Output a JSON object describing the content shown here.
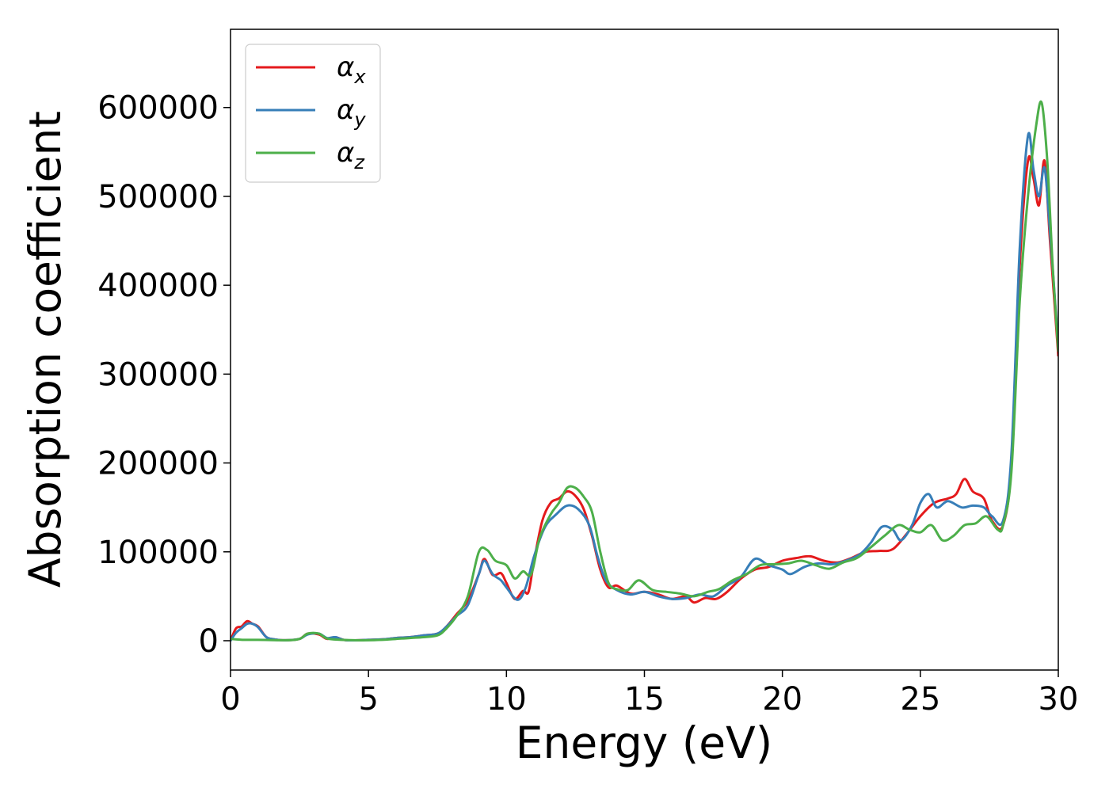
{
  "chart_data": {
    "type": "line",
    "xlabel": "Energy (eV)",
    "ylabel": "Absorption coefficient",
    "xlim": [
      0,
      30
    ],
    "ylim": [
      -33000,
      688000
    ],
    "xticks": [
      0,
      5,
      10,
      15,
      20,
      25,
      30
    ],
    "yticks": [
      0,
      100000,
      200000,
      300000,
      400000,
      500000,
      600000
    ],
    "grid": false,
    "legend_position": "upper-left",
    "series": [
      {
        "name": "α",
        "subscript": "x",
        "color": "#e41a1c",
        "points": [
          [
            0,
            0
          ],
          [
            0.2,
            14000
          ],
          [
            0.4,
            16000
          ],
          [
            0.6,
            22000
          ],
          [
            0.8,
            19000
          ],
          [
            1.0,
            16000
          ],
          [
            1.3,
            4000
          ],
          [
            1.6,
            1500
          ],
          [
            2.0,
            500
          ],
          [
            2.5,
            2000
          ],
          [
            2.8,
            8000
          ],
          [
            3.2,
            7000
          ],
          [
            3.5,
            2000
          ],
          [
            3.8,
            4000
          ],
          [
            4.2,
            500
          ],
          [
            5.0,
            1000
          ],
          [
            5.5,
            1500
          ],
          [
            6.0,
            3000
          ],
          [
            6.5,
            4000
          ],
          [
            7.0,
            6000
          ],
          [
            7.5,
            8000
          ],
          [
            7.8,
            15000
          ],
          [
            8.2,
            30000
          ],
          [
            8.6,
            45000
          ],
          [
            9.0,
            75000
          ],
          [
            9.2,
            92000
          ],
          [
            9.5,
            74000
          ],
          [
            9.8,
            76000
          ],
          [
            10.0,
            65000
          ],
          [
            10.3,
            47000
          ],
          [
            10.6,
            56000
          ],
          [
            10.8,
            55000
          ],
          [
            11.0,
            90000
          ],
          [
            11.3,
            135000
          ],
          [
            11.6,
            155000
          ],
          [
            11.9,
            160000
          ],
          [
            12.2,
            168000
          ],
          [
            12.5,
            163000
          ],
          [
            12.8,
            148000
          ],
          [
            13.1,
            118000
          ],
          [
            13.4,
            80000
          ],
          [
            13.7,
            60000
          ],
          [
            14.0,
            62000
          ],
          [
            14.5,
            53000
          ],
          [
            15.0,
            55000
          ],
          [
            15.5,
            52000
          ],
          [
            16.0,
            47000
          ],
          [
            16.5,
            50000
          ],
          [
            16.8,
            43000
          ],
          [
            17.2,
            48000
          ],
          [
            17.6,
            47000
          ],
          [
            18.0,
            55000
          ],
          [
            18.5,
            70000
          ],
          [
            19.0,
            80000
          ],
          [
            19.5,
            83000
          ],
          [
            20.0,
            90000
          ],
          [
            20.5,
            93000
          ],
          [
            21.0,
            95000
          ],
          [
            21.5,
            90000
          ],
          [
            22.0,
            88000
          ],
          [
            22.5,
            93000
          ],
          [
            23.0,
            100000
          ],
          [
            23.5,
            101000
          ],
          [
            24.0,
            103000
          ],
          [
            24.5,
            120000
          ],
          [
            25.0,
            140000
          ],
          [
            25.5,
            155000
          ],
          [
            26.0,
            160000
          ],
          [
            26.3,
            165000
          ],
          [
            26.6,
            182000
          ],
          [
            26.9,
            168000
          ],
          [
            27.3,
            160000
          ],
          [
            27.6,
            135000
          ],
          [
            28.0,
            130000
          ],
          [
            28.3,
            200000
          ],
          [
            28.6,
            420000
          ],
          [
            28.9,
            540000
          ],
          [
            29.1,
            520000
          ],
          [
            29.3,
            490000
          ],
          [
            29.5,
            540000
          ],
          [
            29.7,
            450000
          ],
          [
            30.0,
            320000
          ]
        ]
      },
      {
        "name": "α",
        "subscript": "y",
        "color": "#377eb8",
        "points": [
          [
            0,
            0
          ],
          [
            0.2,
            9000
          ],
          [
            0.4,
            14000
          ],
          [
            0.6,
            19000
          ],
          [
            0.8,
            19000
          ],
          [
            1.0,
            15000
          ],
          [
            1.3,
            4000
          ],
          [
            1.6,
            1500
          ],
          [
            2.0,
            500
          ],
          [
            2.5,
            2000
          ],
          [
            2.8,
            7000
          ],
          [
            3.2,
            8000
          ],
          [
            3.5,
            3000
          ],
          [
            3.8,
            4000
          ],
          [
            4.2,
            500
          ],
          [
            5.0,
            1000
          ],
          [
            5.5,
            1500
          ],
          [
            6.0,
            3000
          ],
          [
            6.5,
            4000
          ],
          [
            7.0,
            6000
          ],
          [
            7.5,
            8000
          ],
          [
            7.8,
            15000
          ],
          [
            8.2,
            28000
          ],
          [
            8.6,
            40000
          ],
          [
            9.0,
            75000
          ],
          [
            9.2,
            90000
          ],
          [
            9.5,
            75000
          ],
          [
            9.8,
            68000
          ],
          [
            10.0,
            60000
          ],
          [
            10.4,
            46000
          ],
          [
            10.7,
            60000
          ],
          [
            11.0,
            95000
          ],
          [
            11.4,
            128000
          ],
          [
            11.8,
            142000
          ],
          [
            12.2,
            152000
          ],
          [
            12.6,
            148000
          ],
          [
            13.0,
            130000
          ],
          [
            13.3,
            95000
          ],
          [
            13.6,
            68000
          ],
          [
            14.0,
            57000
          ],
          [
            14.5,
            52000
          ],
          [
            15.0,
            55000
          ],
          [
            15.5,
            50000
          ],
          [
            16.0,
            47000
          ],
          [
            16.5,
            48000
          ],
          [
            17.0,
            52000
          ],
          [
            17.5,
            50000
          ],
          [
            18.0,
            62000
          ],
          [
            18.5,
            72000
          ],
          [
            19.0,
            92000
          ],
          [
            19.5,
            85000
          ],
          [
            20.0,
            80000
          ],
          [
            20.3,
            75000
          ],
          [
            20.8,
            83000
          ],
          [
            21.3,
            87000
          ],
          [
            21.8,
            86000
          ],
          [
            22.3,
            90000
          ],
          [
            22.8,
            97000
          ],
          [
            23.2,
            110000
          ],
          [
            23.6,
            128000
          ],
          [
            24.0,
            125000
          ],
          [
            24.3,
            113000
          ],
          [
            24.7,
            130000
          ],
          [
            25.0,
            155000
          ],
          [
            25.3,
            165000
          ],
          [
            25.6,
            150000
          ],
          [
            26.0,
            157000
          ],
          [
            26.5,
            150000
          ],
          [
            26.9,
            152000
          ],
          [
            27.3,
            150000
          ],
          [
            27.6,
            140000
          ],
          [
            28.0,
            135000
          ],
          [
            28.3,
            210000
          ],
          [
            28.6,
            440000
          ],
          [
            28.9,
            568000
          ],
          [
            29.1,
            530000
          ],
          [
            29.3,
            500000
          ],
          [
            29.5,
            532000
          ],
          [
            29.7,
            460000
          ],
          [
            30.0,
            330000
          ]
        ]
      },
      {
        "name": "α",
        "subscript": "z",
        "color": "#4daf4a",
        "points": [
          [
            0,
            2000
          ],
          [
            0.5,
            1000
          ],
          [
            1.0,
            1000
          ],
          [
            2.0,
            500
          ],
          [
            2.5,
            2000
          ],
          [
            2.8,
            8000
          ],
          [
            3.2,
            8000
          ],
          [
            3.5,
            2500
          ],
          [
            4.0,
            1000
          ],
          [
            4.5,
            500
          ],
          [
            5.0,
            500
          ],
          [
            5.5,
            1000
          ],
          [
            6.0,
            2000
          ],
          [
            6.5,
            3000
          ],
          [
            7.0,
            4000
          ],
          [
            7.5,
            6000
          ],
          [
            7.8,
            13000
          ],
          [
            8.2,
            28000
          ],
          [
            8.6,
            50000
          ],
          [
            9.0,
            100000
          ],
          [
            9.3,
            102000
          ],
          [
            9.6,
            90000
          ],
          [
            10.0,
            85000
          ],
          [
            10.3,
            70000
          ],
          [
            10.6,
            78000
          ],
          [
            10.9,
            75000
          ],
          [
            11.2,
            115000
          ],
          [
            11.6,
            142000
          ],
          [
            11.9,
            155000
          ],
          [
            12.2,
            172000
          ],
          [
            12.5,
            172000
          ],
          [
            12.8,
            162000
          ],
          [
            13.1,
            145000
          ],
          [
            13.4,
            100000
          ],
          [
            13.7,
            65000
          ],
          [
            14.0,
            58000
          ],
          [
            14.4,
            57000
          ],
          [
            14.8,
            68000
          ],
          [
            15.3,
            57000
          ],
          [
            15.8,
            55000
          ],
          [
            16.3,
            53000
          ],
          [
            16.8,
            50000
          ],
          [
            17.3,
            55000
          ],
          [
            17.7,
            58000
          ],
          [
            18.2,
            68000
          ],
          [
            18.7,
            75000
          ],
          [
            19.2,
            85000
          ],
          [
            19.7,
            86000
          ],
          [
            20.2,
            87000
          ],
          [
            20.7,
            90000
          ],
          [
            21.2,
            85000
          ],
          [
            21.7,
            81000
          ],
          [
            22.2,
            88000
          ],
          [
            22.7,
            93000
          ],
          [
            23.2,
            105000
          ],
          [
            23.7,
            118000
          ],
          [
            24.2,
            130000
          ],
          [
            24.6,
            125000
          ],
          [
            25.0,
            122000
          ],
          [
            25.4,
            130000
          ],
          [
            25.8,
            113000
          ],
          [
            26.2,
            118000
          ],
          [
            26.6,
            130000
          ],
          [
            27.0,
            132000
          ],
          [
            27.4,
            140000
          ],
          [
            27.8,
            125000
          ],
          [
            28.0,
            130000
          ],
          [
            28.3,
            190000
          ],
          [
            28.6,
            380000
          ],
          [
            28.9,
            500000
          ],
          [
            29.2,
            580000
          ],
          [
            29.4,
            605000
          ],
          [
            29.6,
            540000
          ],
          [
            29.8,
            420000
          ],
          [
            30.0,
            325000
          ]
        ]
      }
    ]
  }
}
